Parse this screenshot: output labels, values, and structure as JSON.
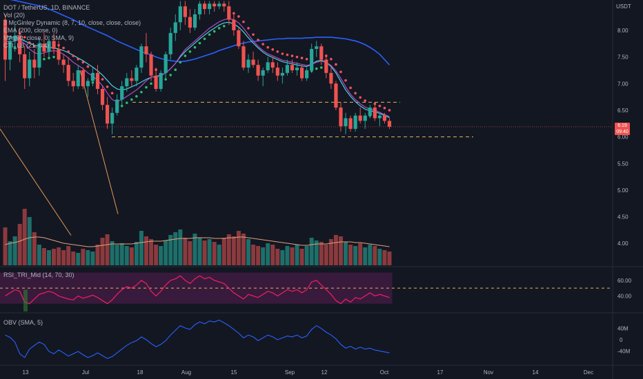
{
  "header": {
    "symbol_line": "DOT / TetherUS, 1D, BINANCE",
    "indicators": [
      "Vol (20)",
      "3 McGinley Dynamic (8, 7, 10, close, close, close)",
      "EMA (200, close, 0)",
      "MA (50, close, 0, SMA, 9)",
      "CTI_LB (21, 0.4)"
    ]
  },
  "rsi_title": "RSI_TRI_Mid (14, 70, 30)",
  "obv_title": "OBV (SMA, 5)",
  "price_tag": {
    "value": "6.19",
    "sub": "09:40"
  },
  "colors": {
    "bull": "#26a69a",
    "bear": "#ef5350",
    "ema": "#2962ff",
    "mcg": "#f7525f",
    "rsi": "#e91e63",
    "obv": "#2962ff",
    "bg": "#131722"
  },
  "chart_data": {
    "type": "candlestick",
    "quote": "USDT",
    "price_axis": {
      "ticks": [
        "8.00",
        "7.50",
        "7.00",
        "6.50",
        "6.00",
        "5.50",
        "5.00",
        "4.50",
        "4.00"
      ],
      "range": [
        3.6,
        8.55
      ]
    },
    "rsi_axis": {
      "ticks": [
        "60.00",
        "40.00"
      ],
      "range": [
        20,
        75
      ],
      "dashed_level": 50
    },
    "obv_axis": {
      "ticks": [
        "40M",
        "0",
        "-40M"
      ]
    },
    "date_axis": [
      "13",
      "Jul",
      "18",
      "Aug",
      "15",
      "Sep",
      "12",
      "Oct",
      "17",
      "Nov",
      "14",
      "Dec"
    ],
    "horizontal_levels": [
      6.65,
      6.0
    ],
    "candles": [
      [
        8.2,
        8.3,
        7.05,
        7.45
      ],
      [
        7.45,
        7.9,
        7.25,
        7.8
      ],
      [
        7.8,
        8.1,
        7.6,
        7.9
      ],
      [
        7.9,
        8.05,
        7.4,
        7.55
      ],
      [
        7.55,
        7.7,
        6.9,
        7.1
      ],
      [
        7.1,
        7.6,
        6.95,
        7.45
      ],
      [
        7.45,
        7.65,
        7.1,
        7.3
      ],
      [
        7.3,
        7.85,
        7.15,
        7.75
      ],
      [
        7.75,
        7.95,
        7.5,
        7.6
      ],
      [
        7.6,
        7.9,
        7.45,
        7.8
      ],
      [
        7.8,
        7.95,
        7.55,
        7.65
      ],
      [
        7.65,
        7.8,
        7.35,
        7.45
      ],
      [
        7.45,
        7.55,
        7.2,
        7.35
      ],
      [
        7.35,
        7.5,
        6.95,
        7.05
      ],
      [
        7.05,
        7.2,
        6.85,
        6.95
      ],
      [
        6.95,
        7.35,
        6.9,
        7.25
      ],
      [
        7.25,
        7.3,
        6.9,
        6.95
      ],
      [
        6.95,
        7.1,
        6.75,
        7.05
      ],
      [
        7.05,
        7.3,
        6.95,
        7.2
      ],
      [
        7.2,
        7.35,
        6.8,
        6.9
      ],
      [
        6.9,
        6.95,
        6.5,
        6.6
      ],
      [
        6.6,
        6.75,
        6.15,
        6.25
      ],
      [
        6.25,
        6.55,
        6.05,
        6.45
      ],
      [
        6.45,
        6.8,
        6.4,
        6.7
      ],
      [
        6.7,
        7.05,
        6.6,
        6.95
      ],
      [
        6.95,
        7.2,
        6.85,
        7.1
      ],
      [
        7.1,
        7.25,
        6.95,
        7.05
      ],
      [
        7.05,
        7.35,
        6.95,
        7.3
      ],
      [
        7.3,
        7.75,
        7.2,
        7.7
      ],
      [
        7.7,
        7.95,
        7.4,
        7.55
      ],
      [
        7.55,
        7.6,
        7.05,
        7.15
      ],
      [
        7.15,
        7.3,
        6.85,
        6.9
      ],
      [
        6.9,
        7.25,
        6.85,
        7.2
      ],
      [
        7.2,
        7.6,
        7.1,
        7.55
      ],
      [
        7.55,
        8.05,
        7.45,
        7.95
      ],
      [
        7.95,
        8.3,
        7.8,
        8.15
      ],
      [
        8.15,
        8.55,
        8.0,
        8.45
      ],
      [
        8.45,
        8.55,
        8.1,
        8.25
      ],
      [
        8.25,
        8.4,
        7.95,
        8.05
      ],
      [
        8.05,
        8.4,
        8.0,
        8.3
      ],
      [
        8.3,
        8.55,
        8.2,
        8.5
      ],
      [
        8.5,
        8.55,
        8.3,
        8.4
      ],
      [
        8.4,
        8.55,
        8.3,
        8.5
      ],
      [
        8.5,
        8.55,
        8.35,
        8.45
      ],
      [
        8.45,
        8.55,
        8.4,
        8.5
      ],
      [
        8.5,
        8.55,
        8.35,
        8.45
      ],
      [
        8.45,
        8.55,
        8.1,
        8.2
      ],
      [
        8.2,
        8.3,
        7.9,
        8.0
      ],
      [
        8.0,
        8.05,
        7.65,
        7.7
      ],
      [
        7.7,
        7.8,
        7.25,
        7.3
      ],
      [
        7.3,
        7.55,
        7.2,
        7.45
      ],
      [
        7.45,
        7.6,
        7.3,
        7.35
      ],
      [
        7.35,
        7.45,
        7.05,
        7.15
      ],
      [
        7.15,
        7.3,
        6.95,
        7.25
      ],
      [
        7.25,
        7.5,
        7.2,
        7.4
      ],
      [
        7.4,
        7.5,
        7.2,
        7.3
      ],
      [
        7.3,
        7.4,
        7.05,
        7.15
      ],
      [
        7.15,
        7.3,
        7.0,
        7.2
      ],
      [
        7.2,
        7.45,
        7.15,
        7.35
      ],
      [
        7.35,
        7.45,
        7.2,
        7.25
      ],
      [
        7.25,
        7.4,
        7.15,
        7.3
      ],
      [
        7.3,
        7.35,
        7.05,
        7.1
      ],
      [
        7.1,
        7.3,
        7.05,
        7.25
      ],
      [
        7.25,
        7.75,
        7.2,
        7.65
      ],
      [
        7.65,
        7.8,
        7.5,
        7.7
      ],
      [
        7.7,
        7.75,
        7.35,
        7.45
      ],
      [
        7.45,
        7.55,
        7.1,
        7.2
      ],
      [
        7.2,
        7.3,
        6.9,
        7.0
      ],
      [
        7.0,
        7.05,
        6.5,
        6.55
      ],
      [
        6.55,
        6.65,
        6.1,
        6.2
      ],
      [
        6.2,
        6.45,
        6.05,
        6.35
      ],
      [
        6.35,
        6.4,
        6.1,
        6.15
      ],
      [
        6.15,
        6.45,
        6.1,
        6.4
      ],
      [
        6.4,
        6.55,
        6.25,
        6.3
      ],
      [
        6.3,
        6.45,
        6.15,
        6.4
      ],
      [
        6.4,
        6.6,
        6.35,
        6.55
      ],
      [
        6.55,
        6.6,
        6.3,
        6.35
      ],
      [
        6.35,
        6.45,
        6.2,
        6.4
      ],
      [
        6.4,
        6.45,
        6.25,
        6.3
      ],
      [
        6.3,
        6.35,
        6.15,
        6.19
      ]
    ],
    "volume": [
      0.55,
      0.35,
      0.42,
      0.6,
      0.82,
      0.7,
      0.48,
      0.3,
      0.25,
      0.22,
      0.24,
      0.26,
      0.22,
      0.28,
      0.2,
      0.18,
      0.24,
      0.22,
      0.2,
      0.3,
      0.4,
      0.45,
      0.35,
      0.3,
      0.32,
      0.28,
      0.26,
      0.34,
      0.5,
      0.42,
      0.38,
      0.3,
      0.28,
      0.36,
      0.44,
      0.48,
      0.52,
      0.4,
      0.35,
      0.46,
      0.4,
      0.36,
      0.38,
      0.34,
      0.3,
      0.4,
      0.45,
      0.42,
      0.5,
      0.46,
      0.38,
      0.3,
      0.28,
      0.26,
      0.32,
      0.3,
      0.24,
      0.22,
      0.28,
      0.26,
      0.3,
      0.24,
      0.28,
      0.4,
      0.36,
      0.34,
      0.3,
      0.38,
      0.44,
      0.42,
      0.34,
      0.3,
      0.28,
      0.32,
      0.26,
      0.3,
      0.28,
      0.24,
      0.22,
      0.2
    ],
    "volume_ma": [
      0.3,
      0.32,
      0.33,
      0.35,
      0.38,
      0.4,
      0.41,
      0.41,
      0.4,
      0.38,
      0.36,
      0.34,
      0.32,
      0.31,
      0.3,
      0.29,
      0.28,
      0.27,
      0.27,
      0.28,
      0.29,
      0.3,
      0.31,
      0.31,
      0.31,
      0.31,
      0.31,
      0.32,
      0.33,
      0.34,
      0.35,
      0.35,
      0.35,
      0.36,
      0.37,
      0.38,
      0.39,
      0.39,
      0.39,
      0.4,
      0.4,
      0.4,
      0.4,
      0.39,
      0.39,
      0.39,
      0.4,
      0.4,
      0.41,
      0.41,
      0.4,
      0.39,
      0.38,
      0.37,
      0.36,
      0.35,
      0.34,
      0.33,
      0.32,
      0.31,
      0.3,
      0.29,
      0.29,
      0.3,
      0.31,
      0.31,
      0.31,
      0.32,
      0.33,
      0.34,
      0.34,
      0.34,
      0.33,
      0.33,
      0.32,
      0.31,
      0.3,
      0.29,
      0.28,
      0.27
    ],
    "ema200": [
      8.6,
      8.58,
      8.56,
      8.54,
      8.52,
      8.5,
      8.48,
      8.46,
      8.43,
      8.4,
      8.36,
      8.32,
      8.28,
      8.24,
      8.2,
      8.15,
      8.1,
      8.06,
      8.02,
      7.98,
      7.94,
      7.9,
      7.85,
      7.8,
      7.76,
      7.72,
      7.68,
      7.64,
      7.6,
      7.57,
      7.54,
      7.5,
      7.47,
      7.45,
      7.43,
      7.42,
      7.41,
      7.42,
      7.44,
      7.46,
      7.49,
      7.52,
      7.55,
      7.58,
      7.62,
      7.65,
      7.68,
      7.71,
      7.74,
      7.76,
      7.78,
      7.79,
      7.8,
      7.81,
      7.82,
      7.83,
      7.84,
      7.84,
      7.85,
      7.85,
      7.85,
      7.85,
      7.86,
      7.86,
      7.87,
      7.87,
      7.87,
      7.87,
      7.86,
      7.85,
      7.84,
      7.82,
      7.8,
      7.77,
      7.73,
      7.68,
      7.62,
      7.55,
      7.45,
      7.35
    ],
    "mcginley": [
      7.8,
      7.78,
      7.8,
      7.82,
      7.75,
      7.65,
      7.58,
      7.55,
      7.58,
      7.6,
      7.62,
      7.6,
      7.55,
      7.48,
      7.4,
      7.34,
      7.28,
      7.2,
      7.14,
      7.06,
      6.96,
      6.82,
      6.7,
      6.66,
      6.7,
      6.76,
      6.82,
      6.88,
      6.96,
      7.05,
      7.12,
      7.14,
      7.16,
      7.2,
      7.28,
      7.38,
      7.52,
      7.64,
      7.72,
      7.8,
      7.88,
      7.96,
      8.04,
      8.1,
      8.16,
      8.2,
      8.22,
      8.2,
      8.14,
      8.04,
      7.92,
      7.8,
      7.7,
      7.62,
      7.56,
      7.52,
      7.48,
      7.44,
      7.42,
      7.4,
      7.38,
      7.36,
      7.34,
      7.36,
      7.4,
      7.42,
      7.4,
      7.34,
      7.24,
      7.1,
      6.94,
      6.8,
      6.7,
      6.62,
      6.56,
      6.52,
      6.5,
      6.46,
      6.42,
      6.38
    ],
    "sma50": [
      7.9,
      7.88,
      7.86,
      7.84,
      7.8,
      7.76,
      7.72,
      7.7,
      7.69,
      7.68,
      7.67,
      7.65,
      7.62,
      7.58,
      7.53,
      7.48,
      7.43,
      7.37,
      7.31,
      7.24,
      7.16,
      7.06,
      6.96,
      6.9,
      6.88,
      6.9,
      6.94,
      6.98,
      7.03,
      7.08,
      7.12,
      7.13,
      7.15,
      7.2,
      7.28,
      7.38,
      7.5,
      7.6,
      7.68,
      7.76,
      7.84,
      7.91,
      7.98,
      8.04,
      8.1,
      8.14,
      8.15,
      8.12,
      8.06,
      7.97,
      7.86,
      7.76,
      7.67,
      7.59,
      7.53,
      7.49,
      7.45,
      7.41,
      7.39,
      7.37,
      7.35,
      7.33,
      7.32,
      7.36,
      7.42,
      7.44,
      7.4,
      7.32,
      7.2,
      7.04,
      6.88,
      6.76,
      6.66,
      6.58,
      6.52,
      6.49,
      6.47,
      6.44,
      6.4,
      6.36
    ],
    "rsi": [
      40,
      44,
      48,
      46,
      32,
      30,
      36,
      42,
      44,
      46,
      44,
      40,
      38,
      36,
      35,
      40,
      37,
      39,
      41,
      38,
      34,
      30,
      35,
      42,
      48,
      52,
      50,
      54,
      60,
      56,
      46,
      40,
      46,
      54,
      60,
      62,
      66,
      60,
      56,
      62,
      66,
      62,
      64,
      60,
      58,
      56,
      50,
      44,
      40,
      36,
      42,
      40,
      38,
      42,
      46,
      44,
      40,
      44,
      48,
      46,
      48,
      44,
      48,
      58,
      60,
      54,
      48,
      42,
      34,
      30,
      36,
      32,
      38,
      36,
      40,
      44,
      40,
      42,
      40,
      38
    ],
    "obv": [
      10,
      5,
      -5,
      -30,
      -38,
      -20,
      -12,
      -5,
      -10,
      -25,
      -30,
      -22,
      -28,
      -35,
      -30,
      -25,
      -32,
      -38,
      -34,
      -28,
      -34,
      -40,
      -36,
      -28,
      -20,
      -12,
      -6,
      -2,
      6,
      0,
      -8,
      -15,
      -10,
      -2,
      10,
      20,
      30,
      25,
      22,
      32,
      38,
      34,
      40,
      38,
      42,
      36,
      30,
      22,
      14,
      4,
      10,
      6,
      -2,
      4,
      10,
      6,
      0,
      4,
      8,
      6,
      10,
      4,
      8,
      22,
      30,
      24,
      16,
      10,
      2,
      -10,
      -18,
      -14,
      -20,
      -16,
      -20,
      -18,
      -22,
      -24,
      -26,
      -28
    ]
  }
}
